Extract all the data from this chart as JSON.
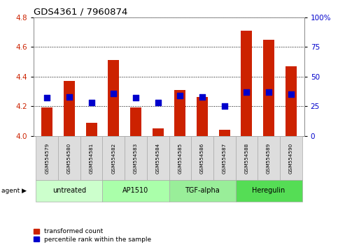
{
  "title": "GDS4361 / 7960874",
  "samples": [
    "GSM554579",
    "GSM554580",
    "GSM554581",
    "GSM554582",
    "GSM554583",
    "GSM554584",
    "GSM554585",
    "GSM554586",
    "GSM554587",
    "GSM554588",
    "GSM554589",
    "GSM554590"
  ],
  "red_values": [
    4.19,
    4.37,
    4.09,
    4.51,
    4.19,
    4.05,
    4.31,
    4.26,
    4.04,
    4.71,
    4.65,
    4.47
  ],
  "blue_percentiles": [
    32,
    33,
    28,
    36,
    32,
    28,
    34,
    33,
    25,
    37,
    37,
    35
  ],
  "ylim_left": [
    4.0,
    4.8
  ],
  "ylim_right": [
    0,
    100
  ],
  "yticks_left": [
    4.0,
    4.2,
    4.4,
    4.6,
    4.8
  ],
  "yticks_right": [
    0,
    25,
    50,
    75,
    100
  ],
  "ytick_labels_right": [
    "0",
    "25",
    "50",
    "75",
    "100%"
  ],
  "groups": [
    {
      "label": "untreated",
      "start": 0,
      "end": 3,
      "color": "#ccffcc"
    },
    {
      "label": "AP1510",
      "start": 3,
      "end": 6,
      "color": "#aaffaa"
    },
    {
      "label": "TGF-alpha",
      "start": 6,
      "end": 9,
      "color": "#99ee99"
    },
    {
      "label": "Heregulin",
      "start": 9,
      "end": 12,
      "color": "#55dd55"
    }
  ],
  "bar_color": "#cc2200",
  "dot_color": "#0000cc",
  "bar_width": 0.5,
  "dot_size": 28,
  "tick_label_color_left": "#cc2200",
  "tick_label_color_right": "#0000cc",
  "agent_label": "agent",
  "legend_red": "transformed count",
  "legend_blue": "percentile rank within the sample",
  "sample_cell_color": "#dddddd",
  "cell_edge_color": "#aaaaaa"
}
